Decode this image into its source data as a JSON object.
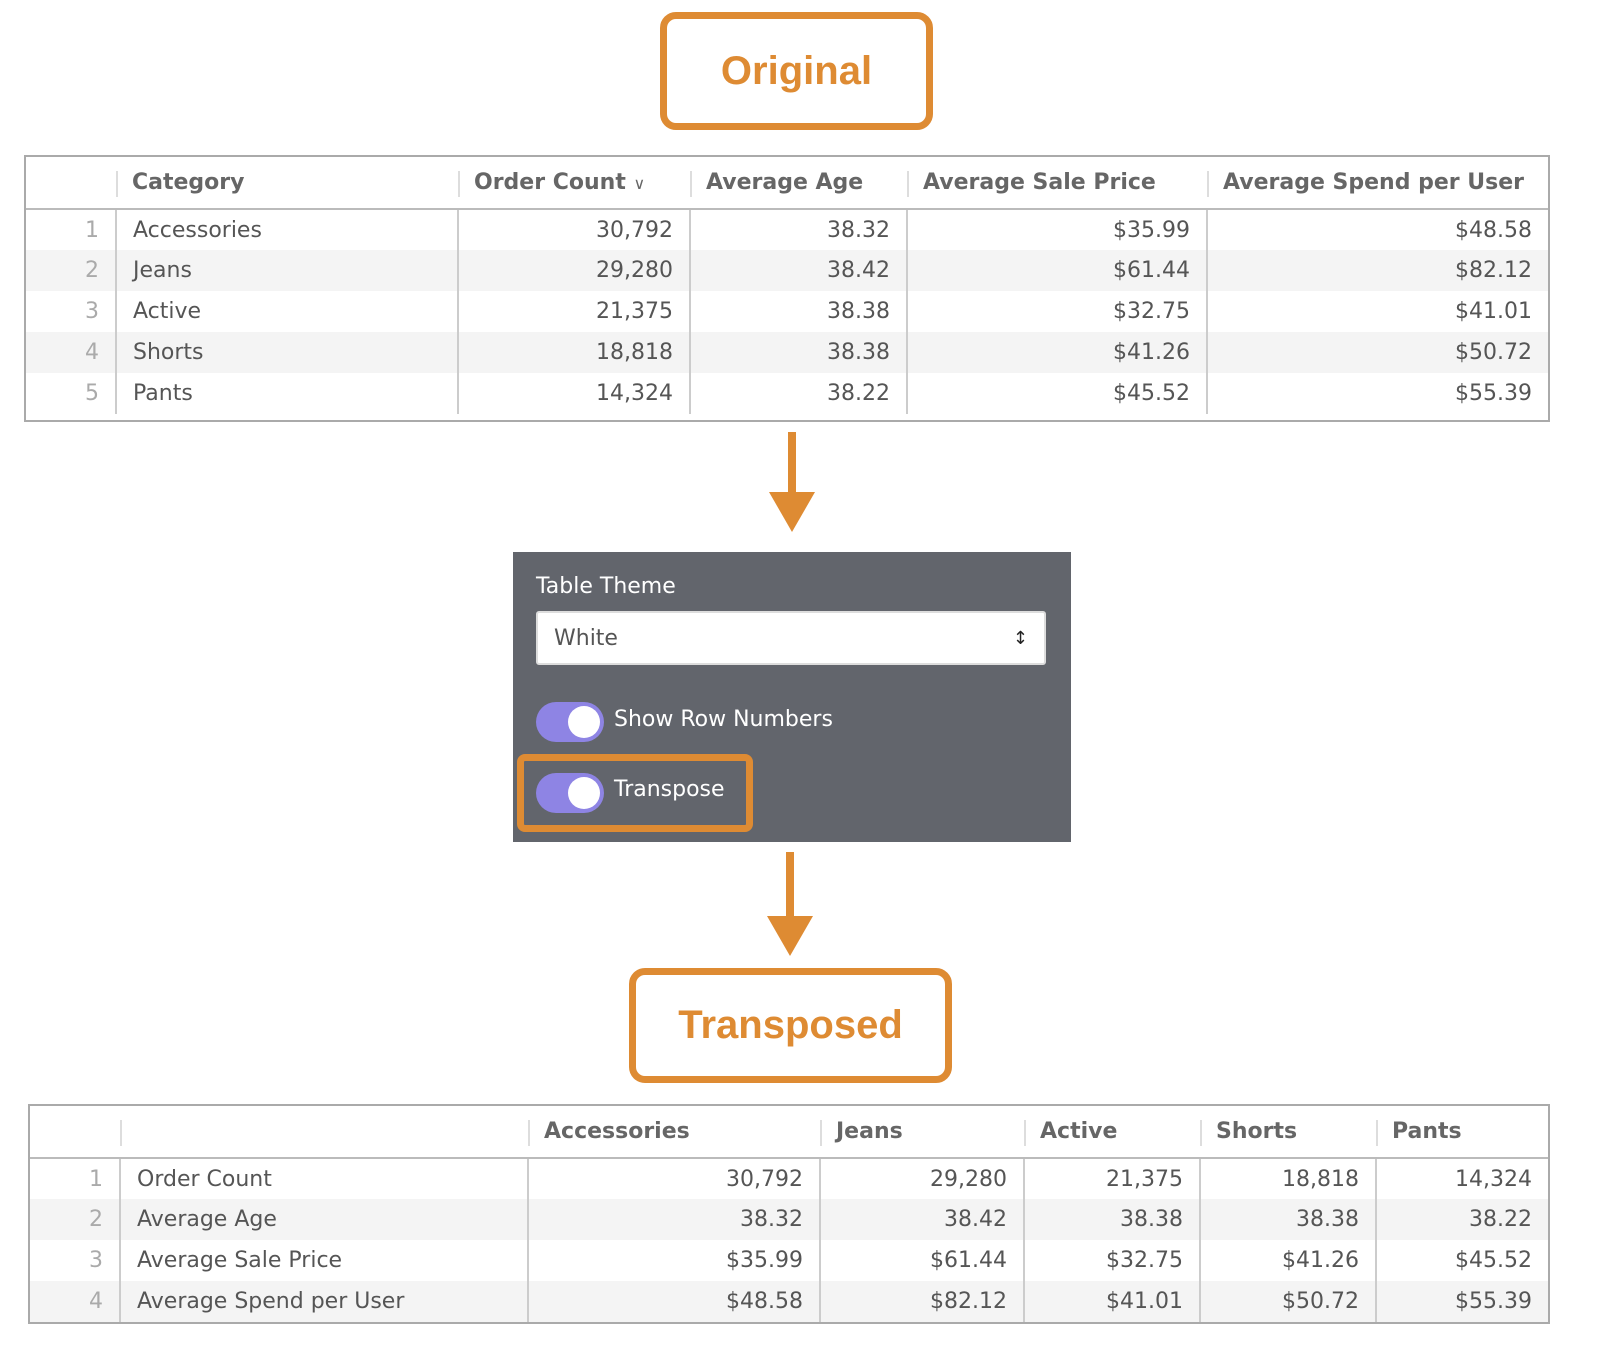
{
  "callouts": {
    "original": "Original",
    "transposed": "Transposed"
  },
  "colors": {
    "accent": "#de8b33",
    "toggle_on": "#8e84e4",
    "panel_bg": "#62656c"
  },
  "original_table": {
    "columns": [
      "Category",
      "Order Count",
      "Average Age",
      "Average Sale Price",
      "Average Spend per User"
    ],
    "sort_icon": "chevron-down-icon",
    "rows": [
      {
        "n": "1",
        "cells": [
          "Accessories",
          "30,792",
          "38.32",
          "$35.99",
          "$48.58"
        ]
      },
      {
        "n": "2",
        "cells": [
          "Jeans",
          "29,280",
          "38.42",
          "$61.44",
          "$82.12"
        ]
      },
      {
        "n": "3",
        "cells": [
          "Active",
          "21,375",
          "38.38",
          "$32.75",
          "$41.01"
        ]
      },
      {
        "n": "4",
        "cells": [
          "Shorts",
          "18,818",
          "38.38",
          "$41.26",
          "$50.72"
        ]
      },
      {
        "n": "5",
        "cells": [
          "Pants",
          "14,324",
          "38.22",
          "$45.52",
          "$55.39"
        ]
      }
    ]
  },
  "settings": {
    "theme_label": "Table Theme",
    "theme_value": "White",
    "show_row_numbers": {
      "label": "Show Row Numbers",
      "on": true
    },
    "transpose": {
      "label": "Transpose",
      "on": true
    }
  },
  "transposed_table": {
    "columns": [
      "",
      "Accessories",
      "Jeans",
      "Active",
      "Shorts",
      "Pants"
    ],
    "rows": [
      {
        "n": "1",
        "cells": [
          "Order Count",
          "30,792",
          "29,280",
          "21,375",
          "18,818",
          "14,324"
        ]
      },
      {
        "n": "2",
        "cells": [
          "Average Age",
          "38.32",
          "38.42",
          "38.38",
          "38.38",
          "38.22"
        ]
      },
      {
        "n": "3",
        "cells": [
          "Average Sale Price",
          "$35.99",
          "$61.44",
          "$32.75",
          "$41.26",
          "$45.52"
        ]
      },
      {
        "n": "4",
        "cells": [
          "Average Spend per User",
          "$48.58",
          "$82.12",
          "$41.01",
          "$50.72",
          "$55.39"
        ]
      }
    ]
  }
}
